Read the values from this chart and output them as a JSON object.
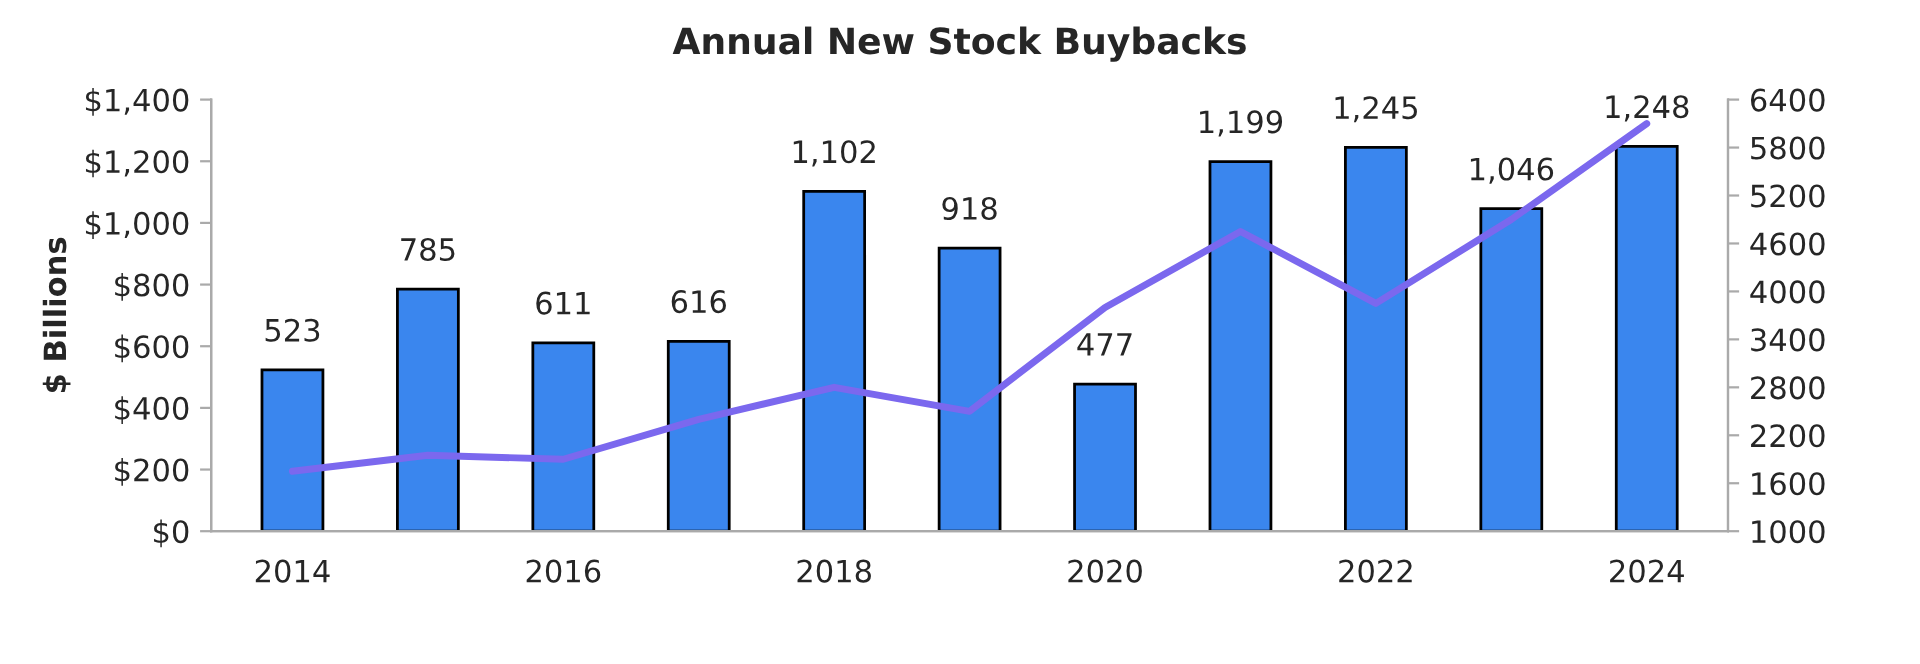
{
  "chart_data": {
    "type": "bar",
    "title": "Annual New Stock Buybacks",
    "ylabel": "$ Billions",
    "categories": [
      "2014",
      null,
      "2016",
      null,
      "2018",
      null,
      "2020",
      null,
      "2022",
      null,
      "2024"
    ],
    "series": [
      {
        "color": "#3a86ee",
        "values": [
          523,
          785,
          611,
          616,
          1102,
          918,
          477,
          1199,
          1245,
          1046,
          1248
        ],
        "value_labels": [
          "523",
          "785",
          "611",
          "616",
          "1,102",
          "918",
          "477",
          "1,199",
          "1,245",
          "1,046",
          "1,248"
        ]
      },
      {
        "type": "line",
        "axis": "y2",
        "color": "#7b68ee",
        "values": [
          1750,
          1950,
          1900,
          2400,
          2800,
          2500,
          3800,
          4750,
          3850,
          4900,
          6100
        ]
      }
    ],
    "ylim": [
      0,
      1400
    ],
    "yticks": [
      {
        "value": 0,
        "label": "$0"
      },
      {
        "value": 200,
        "label": "$200"
      },
      {
        "value": 400,
        "label": "$400"
      },
      {
        "value": 600,
        "label": "$600"
      },
      {
        "value": 800,
        "label": "$800"
      },
      {
        "value": 1000,
        "label": "$1,000"
      },
      {
        "value": 1200,
        "label": "$1,200"
      },
      {
        "value": 1400,
        "label": "$1,400"
      }
    ],
    "y2lim": [
      1000,
      6400
    ],
    "y2ticks": [
      1000,
      1600,
      2200,
      2800,
      3400,
      4000,
      4600,
      5200,
      5800,
      6400
    ],
    "grid": false,
    "legend": false
  }
}
